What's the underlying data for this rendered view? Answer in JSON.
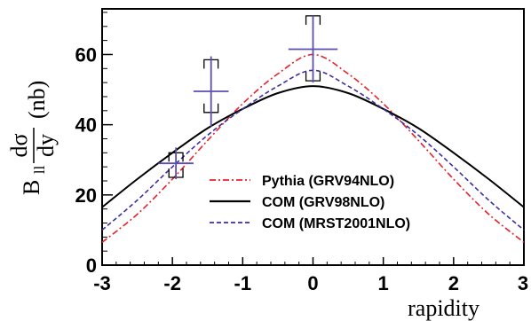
{
  "chart_data": {
    "type": "line",
    "xlabel": "rapidity",
    "ylabel": {
      "prefix": "B",
      "prefix_sub": "ll",
      "numerator": "dσ",
      "denominator": "dy",
      "unit": "(nb)"
    },
    "xlim": [
      -3,
      3
    ],
    "ylim": [
      0,
      73
    ],
    "x_ticks": [
      -3,
      -2,
      -1,
      0,
      1,
      2,
      3
    ],
    "x_tick_labels": [
      "-3",
      "-2",
      "-1",
      "0",
      "1",
      "2",
      "3"
    ],
    "y_ticks": [
      0,
      20,
      40,
      60
    ],
    "y_tick_labels": [
      "0",
      "20",
      "40",
      "60"
    ],
    "grid": false,
    "legend_position": "center-right",
    "series": [
      {
        "name": "Pythia (GRV94NLO)",
        "color": "#e8202a",
        "dash": "dash-dot",
        "x": [
          -3,
          -2.5,
          -2,
          -1.5,
          -1,
          -0.5,
          0,
          0.5,
          1,
          1.5,
          2,
          2.5,
          3
        ],
        "y": [
          6.5,
          14.5,
          24.5,
          35.5,
          46,
          54.5,
          60,
          54.5,
          46,
          35.5,
          24.5,
          14.5,
          6.5
        ]
      },
      {
        "name": "COM (GRV98NLO)",
        "color": "#000000",
        "dash": "solid",
        "x": [
          -3,
          -2.5,
          -2,
          -1.5,
          -1,
          -0.5,
          0,
          0.5,
          1,
          1.5,
          2,
          2.5,
          3
        ],
        "y": [
          16.5,
          24.5,
          32,
          39,
          44.5,
          49,
          51,
          49,
          44.5,
          39,
          32,
          24.5,
          16.5
        ]
      },
      {
        "name": "COM (MRST2001NLO)",
        "color": "#3a2fa0",
        "dash": "dashed",
        "x": [
          -3,
          -2.5,
          -2,
          -1.5,
          -1,
          -0.5,
          0,
          0.5,
          1,
          1.5,
          2,
          2.5,
          3
        ],
        "y": [
          10,
          18.5,
          28,
          37,
          44.5,
          51,
          55.5,
          51,
          44.5,
          37,
          28,
          18.5,
          10
        ]
      }
    ],
    "data_points": [
      {
        "x": -1.95,
        "y": 29,
        "xerr": 0.25,
        "yerr_stat": 4.5,
        "syst_lo": 4,
        "syst_hi": 3,
        "syst_w": 0.1
      },
      {
        "x": -1.45,
        "y": 49.5,
        "xerr": 0.25,
        "yerr_stat": 10,
        "syst_lo": 6,
        "syst_hi": 9,
        "syst_w": 0.1
      },
      {
        "x": 0.0,
        "y": 61.5,
        "xerr": 0.35,
        "yerr_stat": 9.5,
        "syst_lo": 9,
        "syst_hi": 9.5,
        "syst_w": 0.1
      }
    ]
  }
}
